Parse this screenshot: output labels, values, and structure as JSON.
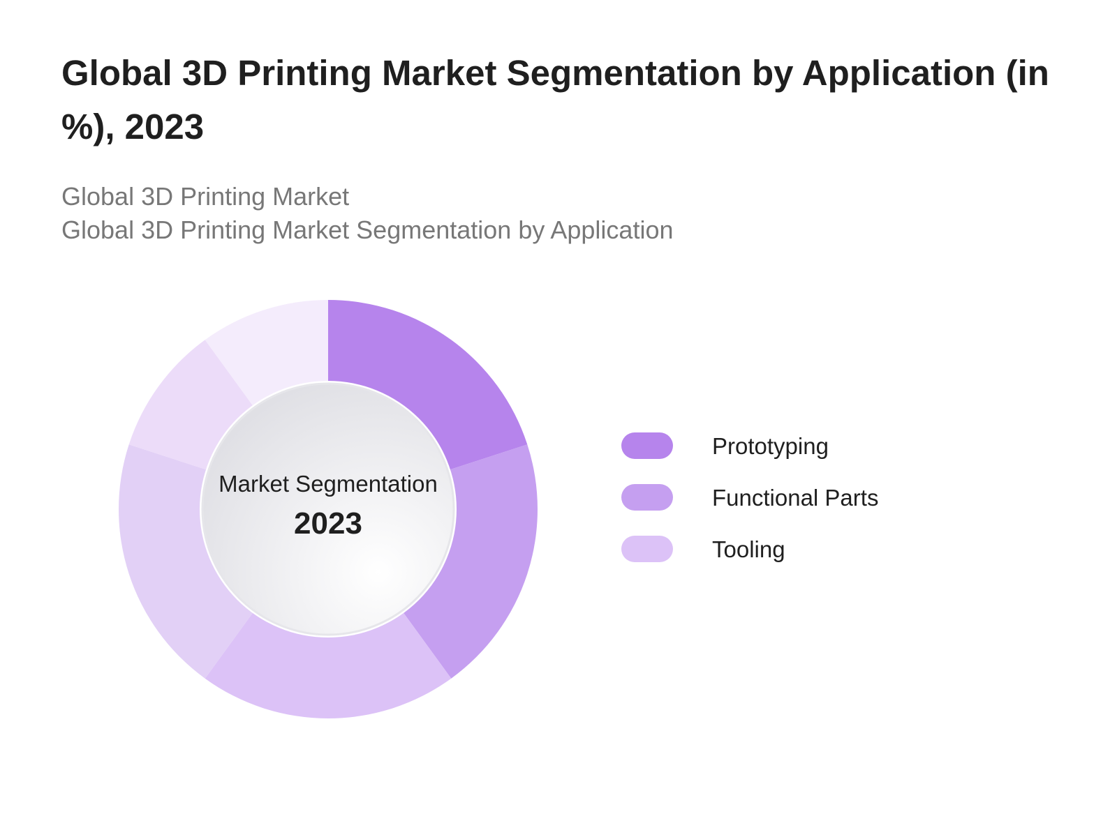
{
  "title": "Global 3D Printing Market Segmentation by Application (in %), 2023",
  "subtitle_lines": [
    "Global 3D Printing Market",
    "Global 3D Printing Market Segmentation by Application"
  ],
  "center": {
    "label": "Market Segmentation",
    "year": "2023"
  },
  "chart_data": {
    "type": "pie",
    "style": "donut",
    "title": "Global 3D Printing Market Segmentation by Application (in %), 2023",
    "legend_position": "right",
    "start_angle_deg": 0,
    "direction": "clockwise",
    "slices": [
      {
        "name": "Prototyping",
        "value": 20,
        "color": "#b684ec"
      },
      {
        "name": "Functional Parts",
        "value": 20,
        "color": "#c59ff0"
      },
      {
        "name": "Tooling",
        "value": 20,
        "color": "#dcc2f7"
      },
      {
        "name": "",
        "value": 20,
        "color": "#e2d0f6"
      },
      {
        "name": "",
        "value": 10,
        "color": "#ecdcf9"
      },
      {
        "name": "",
        "value": 10,
        "color": "#f4ecfc"
      }
    ],
    "legend": [
      {
        "label": "Prototyping",
        "color": "#b684ec"
      },
      {
        "label": "Functional Parts",
        "color": "#c59ff0"
      },
      {
        "label": "Tooling",
        "color": "#dcc2f7"
      }
    ]
  }
}
